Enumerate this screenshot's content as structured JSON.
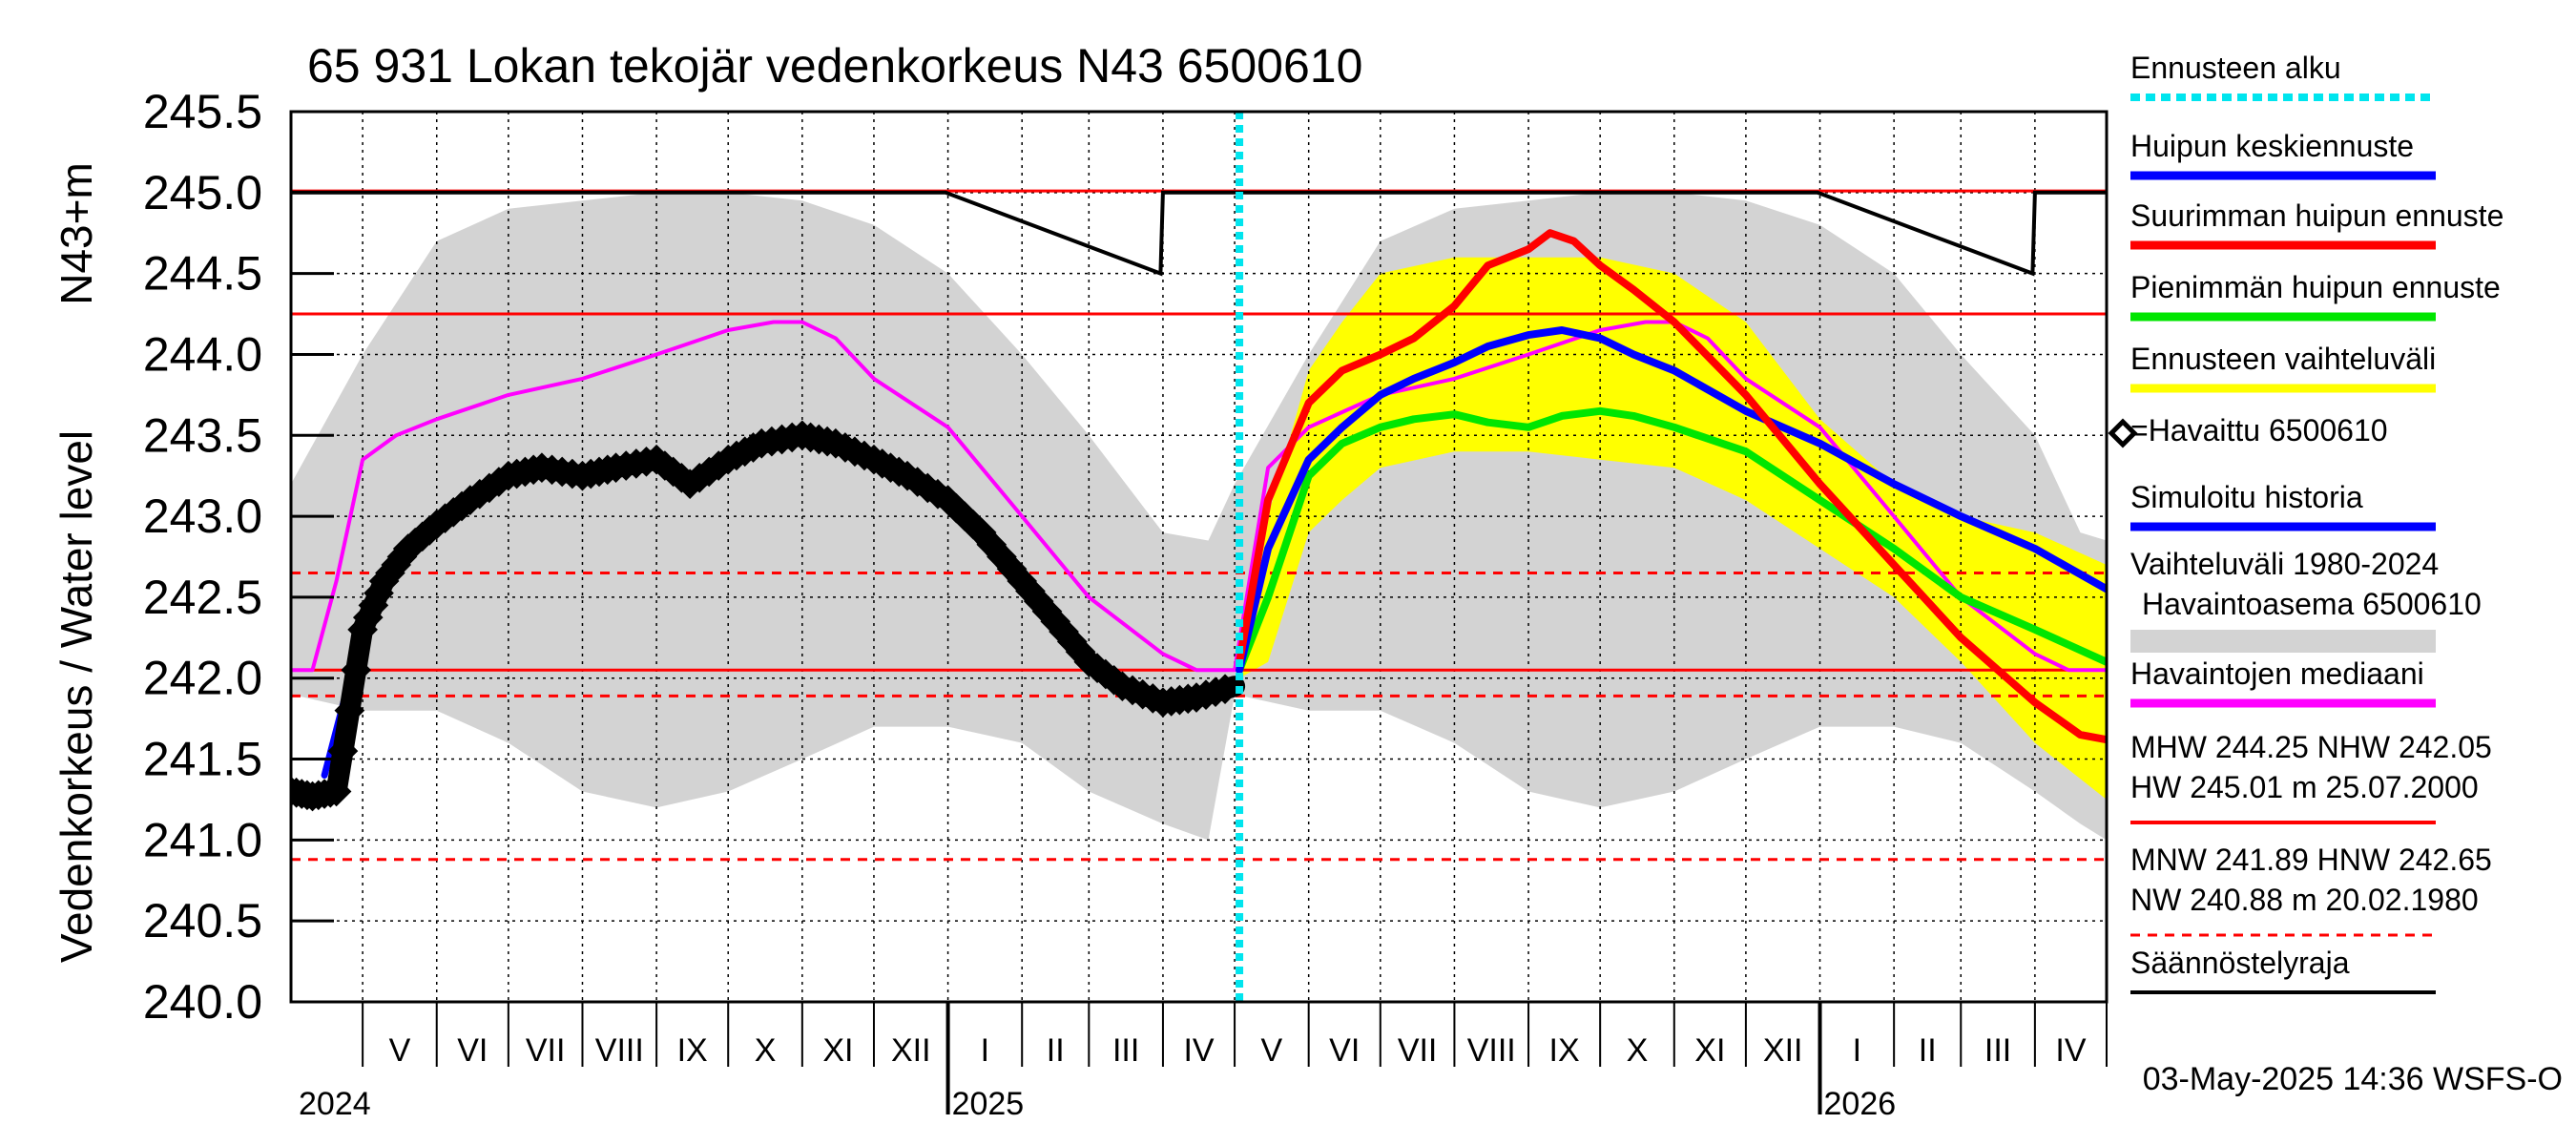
{
  "chart_data": {
    "type": "line",
    "title": "65 931 Lokan tekojär vedenkorkeus N43 6500610",
    "ylabel": "Vedenkorkeus / Water level",
    "yunit": "N43+m",
    "ylim": [
      240.0,
      245.5
    ],
    "yticks": [
      "240.0",
      "240.5",
      "241.0",
      "241.5",
      "242.0",
      "242.5",
      "243.0",
      "243.5",
      "244.0",
      "244.5",
      "245.0",
      "245.5"
    ],
    "xlim": [
      "2024-04-01",
      "2026-05-01"
    ],
    "months": [
      "V",
      "VI",
      "VII",
      "VIII",
      "IX",
      "X",
      "XI",
      "XII",
      "I",
      "II",
      "III",
      "IV",
      "V",
      "VI",
      "VII",
      "VIII",
      "IX",
      "X",
      "XI",
      "XII",
      "I",
      "II",
      "III",
      "IV"
    ],
    "years": [
      "2024",
      "2025",
      "2026"
    ],
    "grid": true,
    "legend_position": "right",
    "forecast_start": "2025-05-03",
    "reference_levels": {
      "MHW": 244.25,
      "NHW": 242.05,
      "HW": 245.01,
      "MNW": 241.89,
      "HNW": 242.65,
      "NW": 240.88
    },
    "regulation_limit": [
      {
        "x": "2024-04-01",
        "y": 245.0
      },
      {
        "x": "2024-12-31",
        "y": 245.0
      },
      {
        "x": "2025-03-31",
        "y": 244.5
      },
      {
        "x": "2025-04-01",
        "y": 245.0
      },
      {
        "x": "2025-12-31",
        "y": 245.0
      },
      {
        "x": "2026-03-31",
        "y": 244.5
      },
      {
        "x": "2026-04-01",
        "y": 245.0
      },
      {
        "x": "2026-05-01",
        "y": 245.0
      }
    ],
    "range_1980_2024": {
      "x": [
        "2024-04-01",
        "2024-05-01",
        "2024-06-01",
        "2024-07-01",
        "2024-08-01",
        "2024-09-01",
        "2024-10-01",
        "2024-11-01",
        "2024-12-01",
        "2025-01-01",
        "2025-02-01",
        "2025-03-01",
        "2025-04-01",
        "2025-04-20",
        "2025-05-01",
        "2025-06-01",
        "2025-07-01",
        "2025-08-01",
        "2025-09-01",
        "2025-10-01",
        "2025-11-01",
        "2025-12-01",
        "2026-01-01",
        "2026-02-01",
        "2026-03-01",
        "2026-04-01",
        "2026-04-20",
        "2026-05-01"
      ],
      "upper": [
        243.2,
        244.0,
        244.7,
        244.9,
        244.95,
        245.0,
        245.0,
        244.95,
        244.8,
        244.5,
        244.0,
        243.5,
        242.9,
        242.85,
        243.2,
        244.0,
        244.7,
        244.9,
        244.95,
        245.0,
        245.0,
        244.95,
        244.8,
        244.5,
        244.0,
        243.5,
        242.9,
        242.85
      ],
      "lower": [
        241.9,
        241.8,
        241.8,
        241.6,
        241.3,
        241.2,
        241.3,
        241.5,
        241.7,
        241.7,
        241.6,
        241.3,
        241.1,
        241.0,
        241.9,
        241.8,
        241.8,
        241.6,
        241.3,
        241.2,
        241.3,
        241.5,
        241.7,
        241.7,
        241.6,
        241.3,
        241.1,
        241.0
      ]
    },
    "forecast_range": {
      "x": [
        "2025-05-03",
        "2025-05-15",
        "2025-06-01",
        "2025-06-15",
        "2025-07-01",
        "2025-08-01",
        "2025-09-01",
        "2025-10-01",
        "2025-11-01",
        "2025-12-01",
        "2026-01-01",
        "2026-02-01",
        "2026-03-01",
        "2026-04-01",
        "2026-05-01"
      ],
      "upper": [
        242.1,
        243.0,
        243.9,
        244.2,
        244.5,
        244.6,
        244.6,
        244.6,
        244.5,
        244.2,
        243.6,
        243.2,
        243.0,
        242.9,
        242.7
      ],
      "lower": [
        242.0,
        242.1,
        242.9,
        243.1,
        243.3,
        243.4,
        243.4,
        243.35,
        243.3,
        243.1,
        242.8,
        242.5,
        242.1,
        241.6,
        241.25
      ]
    },
    "series": [
      {
        "name": "Havaintojen mediaani",
        "color": "#ff00ff",
        "x": [
          "2024-04-01",
          "2024-04-10",
          "2024-04-20",
          "2024-05-01",
          "2024-05-15",
          "2024-06-01",
          "2024-07-01",
          "2024-08-01",
          "2024-09-01",
          "2024-10-01",
          "2024-10-20",
          "2024-11-01",
          "2024-11-15",
          "2024-12-01",
          "2025-01-01",
          "2025-02-01",
          "2025-03-01",
          "2025-04-01",
          "2025-04-15",
          "2025-05-01",
          "2025-05-15",
          "2025-06-01",
          "2025-07-01",
          "2025-08-01",
          "2025-09-01",
          "2025-10-01",
          "2025-10-20",
          "2025-11-01",
          "2025-11-15",
          "2025-12-01",
          "2026-01-01",
          "2026-02-01",
          "2026-03-01",
          "2026-04-01",
          "2026-04-15",
          "2026-05-01"
        ],
        "y": [
          242.05,
          242.05,
          242.6,
          243.35,
          243.5,
          243.6,
          243.75,
          243.85,
          244.0,
          244.15,
          244.2,
          244.2,
          244.1,
          243.85,
          243.55,
          243.0,
          242.5,
          242.15,
          242.05,
          242.05,
          243.3,
          243.55,
          243.75,
          243.85,
          244.0,
          244.15,
          244.2,
          244.2,
          244.1,
          243.85,
          243.55,
          243.0,
          242.5,
          242.15,
          242.05,
          242.05
        ]
      },
      {
        "name": "Simuloitu historia",
        "color": "#0000ff",
        "x": [
          "2024-04-15",
          "2024-05-01",
          "2024-05-15",
          "2024-06-01",
          "2024-06-15",
          "2024-07-01"
        ],
        "y": [
          241.4,
          242.3,
          242.7,
          242.95,
          243.1,
          243.25
        ]
      },
      {
        "name": "Havaittu 6500610",
        "color": "#000000",
        "x": [
          "2024-04-01",
          "2024-04-10",
          "2024-04-20",
          "2024-05-01",
          "2024-05-10",
          "2024-05-20",
          "2024-06-01",
          "2024-06-15",
          "2024-07-01",
          "2024-07-15",
          "2024-08-01",
          "2024-08-15",
          "2024-09-01",
          "2024-09-15",
          "2024-10-01",
          "2024-10-15",
          "2024-11-01",
          "2024-11-15",
          "2024-12-01",
          "2024-12-15",
          "2025-01-01",
          "2025-01-15",
          "2025-02-01",
          "2025-02-15",
          "2025-03-01",
          "2025-03-15",
          "2025-04-01",
          "2025-04-15",
          "2025-05-01"
        ],
        "y": [
          241.3,
          241.27,
          241.3,
          242.3,
          242.6,
          242.8,
          242.95,
          243.1,
          243.25,
          243.3,
          243.25,
          243.3,
          243.35,
          243.2,
          243.35,
          243.45,
          243.5,
          243.45,
          243.35,
          243.25,
          243.1,
          242.9,
          242.6,
          242.35,
          242.1,
          241.95,
          241.85,
          241.88,
          241.95
        ]
      },
      {
        "name": "Pienimmän huipun ennuste",
        "color": "#00e600",
        "x": [
          "2025-05-03",
          "2025-05-15",
          "2025-06-01",
          "2025-06-15",
          "2025-07-01",
          "2025-07-15",
          "2025-08-01",
          "2025-08-15",
          "2025-09-01",
          "2025-09-15",
          "2025-10-01",
          "2025-10-15",
          "2025-11-01",
          "2025-12-01",
          "2026-01-01",
          "2026-02-01",
          "2026-03-01",
          "2026-04-01",
          "2026-05-01"
        ],
        "y": [
          242.05,
          242.5,
          243.25,
          243.45,
          243.55,
          243.6,
          243.63,
          243.58,
          243.55,
          243.62,
          243.65,
          243.62,
          243.55,
          243.4,
          243.1,
          242.8,
          242.5,
          242.3,
          242.1
        ]
      },
      {
        "name": "Huipun keskiennuste",
        "color": "#0000ff",
        "x": [
          "2025-05-03",
          "2025-05-15",
          "2025-06-01",
          "2025-06-15",
          "2025-07-01",
          "2025-07-15",
          "2025-08-01",
          "2025-08-15",
          "2025-09-01",
          "2025-09-15",
          "2025-10-01",
          "2025-10-15",
          "2025-11-01",
          "2025-12-01",
          "2026-01-01",
          "2026-02-01",
          "2026-03-01",
          "2026-04-01",
          "2026-05-01"
        ],
        "y": [
          242.05,
          242.8,
          243.35,
          243.55,
          243.75,
          243.85,
          243.95,
          244.05,
          244.12,
          244.15,
          244.1,
          244.0,
          243.9,
          243.65,
          243.45,
          243.2,
          243.0,
          242.8,
          242.55
        ]
      },
      {
        "name": "Suurimman huipun ennuste",
        "color": "#ff0000",
        "x": [
          "2025-05-03",
          "2025-05-15",
          "2025-06-01",
          "2025-06-15",
          "2025-07-01",
          "2025-07-15",
          "2025-08-01",
          "2025-08-15",
          "2025-09-01",
          "2025-09-10",
          "2025-09-20",
          "2025-10-01",
          "2025-10-15",
          "2025-11-01",
          "2025-12-01",
          "2026-01-01",
          "2026-02-01",
          "2026-03-01",
          "2026-04-01",
          "2026-04-20",
          "2026-05-01"
        ],
        "y": [
          242.1,
          243.1,
          243.7,
          243.9,
          244.0,
          244.1,
          244.3,
          244.55,
          244.65,
          244.75,
          244.7,
          244.55,
          244.4,
          244.2,
          243.75,
          243.2,
          242.7,
          242.25,
          241.85,
          241.65,
          241.62
        ]
      }
    ],
    "legend": [
      {
        "label": "Ennusteen alku",
        "color": "#00e5ee",
        "style": "dotted"
      },
      {
        "label": "Huipun keskiennuste",
        "color": "#0000ff",
        "style": "line"
      },
      {
        "label": "Suurimman huipun ennuste",
        "color": "#ff0000",
        "style": "line"
      },
      {
        "label": "Pienimmän huipun ennuste",
        "color": "#00e600",
        "style": "line"
      },
      {
        "label": "Ennusteen vaihteluväli",
        "color": "#ffff00",
        "style": "line"
      },
      {
        "label": "=Havaittu 6500610",
        "color": "#000000",
        "style": "diamond"
      },
      {
        "label": "Simuloitu historia",
        "color": "#0000ff",
        "style": "line"
      },
      {
        "label": "Vaihteluväli 1980-2024",
        "label2": "Havaintoasema 6500610",
        "color": "#d3d3d3",
        "style": "band"
      },
      {
        "label": "Havaintojen mediaani",
        "color": "#ff00ff",
        "style": "line"
      },
      {
        "label": "MHW 244.25 NHW 242.05",
        "label2": "HW 245.01 m 25.07.2000",
        "color": "#ff0000",
        "style": "line"
      },
      {
        "label": "MNW 241.89 HNW 242.65",
        "label2": "NW 240.88 m 20.02.1980",
        "color": "#ff0000",
        "style": "dashed"
      },
      {
        "label": "Säännöstelyraja",
        "color": "#000000",
        "style": "line"
      }
    ],
    "footer": "03-May-2025 14:36 WSFS-O"
  }
}
